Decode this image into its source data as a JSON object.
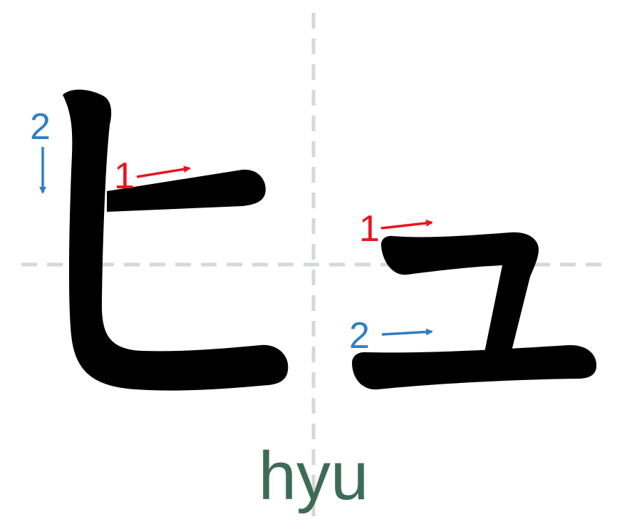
{
  "colors": {
    "guide": "#d4d9d6",
    "stroke": "#000000",
    "red": "#e8141e",
    "blue": "#2f7fc4",
    "romaji": "#3d6b58"
  },
  "kana": [
    "ヒ",
    "ュ"
  ],
  "romaji": "hyu",
  "stroke_order": {
    "hi": [
      {
        "number": "1",
        "direction": "right",
        "color": "red"
      },
      {
        "number": "2",
        "direction": "down",
        "color": "blue"
      }
    ],
    "yu": [
      {
        "number": "1",
        "direction": "right",
        "color": "red"
      },
      {
        "number": "2",
        "direction": "right",
        "color": "blue"
      }
    ]
  }
}
